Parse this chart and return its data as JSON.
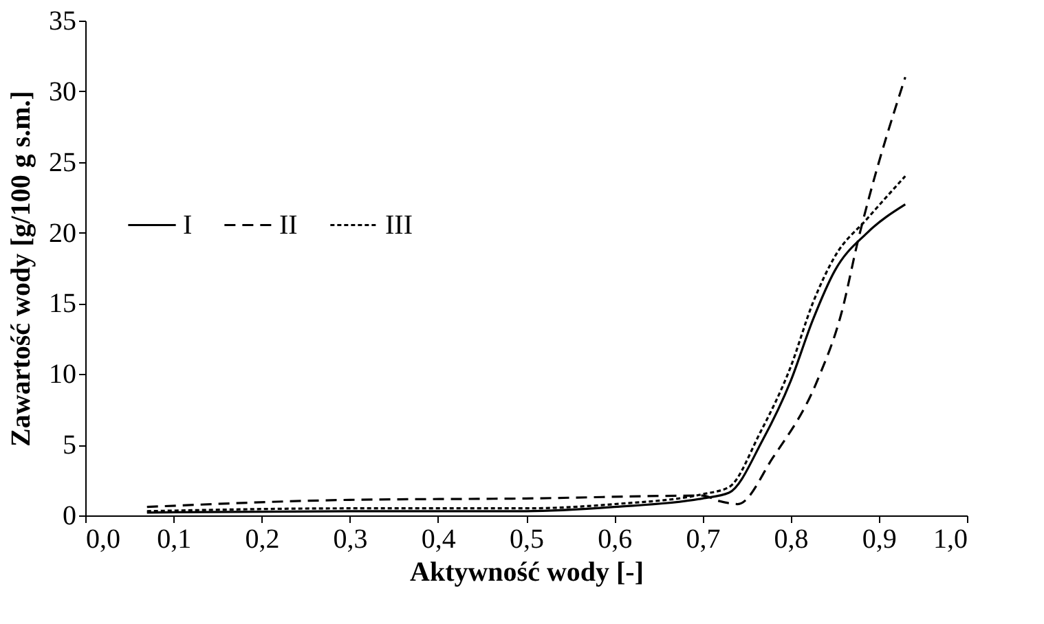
{
  "chart_data": {
    "type": "line",
    "xlabel": "Aktywność wody [-]",
    "ylabel": "Zawartość wody [g/100 g s.m.]",
    "xlim": [
      0,
      1
    ],
    "ylim": [
      0,
      35
    ],
    "xticks": [
      {
        "value": 0,
        "label": "0,0"
      },
      {
        "value": 0.1,
        "label": "0,1"
      },
      {
        "value": 0.2,
        "label": "0,2"
      },
      {
        "value": 0.3,
        "label": "0,3"
      },
      {
        "value": 0.4,
        "label": "0,4"
      },
      {
        "value": 0.5,
        "label": "0,5"
      },
      {
        "value": 0.6,
        "label": "0,6"
      },
      {
        "value": 0.7,
        "label": "0,7"
      },
      {
        "value": 0.8,
        "label": "0,8"
      },
      {
        "value": 0.9,
        "label": "0,9"
      },
      {
        "value": 1,
        "label": "1,0"
      }
    ],
    "yticks": [
      0,
      5,
      10,
      15,
      20,
      25,
      30,
      35
    ],
    "grid": false,
    "legend": "left",
    "marker": "none",
    "series": [
      {
        "name": "I",
        "color": "#000000",
        "line_style": "solid",
        "x": [
          0.07,
          0.3,
          0.5,
          0.6,
          0.7,
          0.73,
          0.768,
          0.8,
          0.825,
          0.85,
          0.887,
          0.93
        ],
        "values": [
          0.2,
          0.3,
          0.3,
          0.6,
          1.2,
          1.6,
          5.3,
          9.5,
          13.8,
          17.3,
          20.0,
          22.0
        ]
      },
      {
        "name": "II",
        "color": "#000000",
        "line_style": "dashed",
        "x": [
          0.07,
          0.3,
          0.5,
          0.7,
          0.72,
          0.74,
          0.78,
          0.83,
          0.858,
          0.877,
          0.889,
          0.93
        ],
        "values": [
          0.6,
          1.1,
          1.2,
          1.4,
          1.0,
          0.8,
          4.1,
          9.5,
          14.4,
          19.6,
          22.5,
          31.0
        ]
      },
      {
        "name": "III",
        "color": "#000000",
        "line_style": "dotted",
        "x": [
          0.07,
          0.3,
          0.5,
          0.6,
          0.7,
          0.73,
          0.765,
          0.8,
          0.825,
          0.85,
          0.887,
          0.93
        ],
        "values": [
          0.3,
          0.5,
          0.5,
          0.8,
          1.5,
          2.0,
          5.8,
          10.5,
          15.0,
          18.3,
          21.0,
          24.0
        ]
      }
    ]
  }
}
